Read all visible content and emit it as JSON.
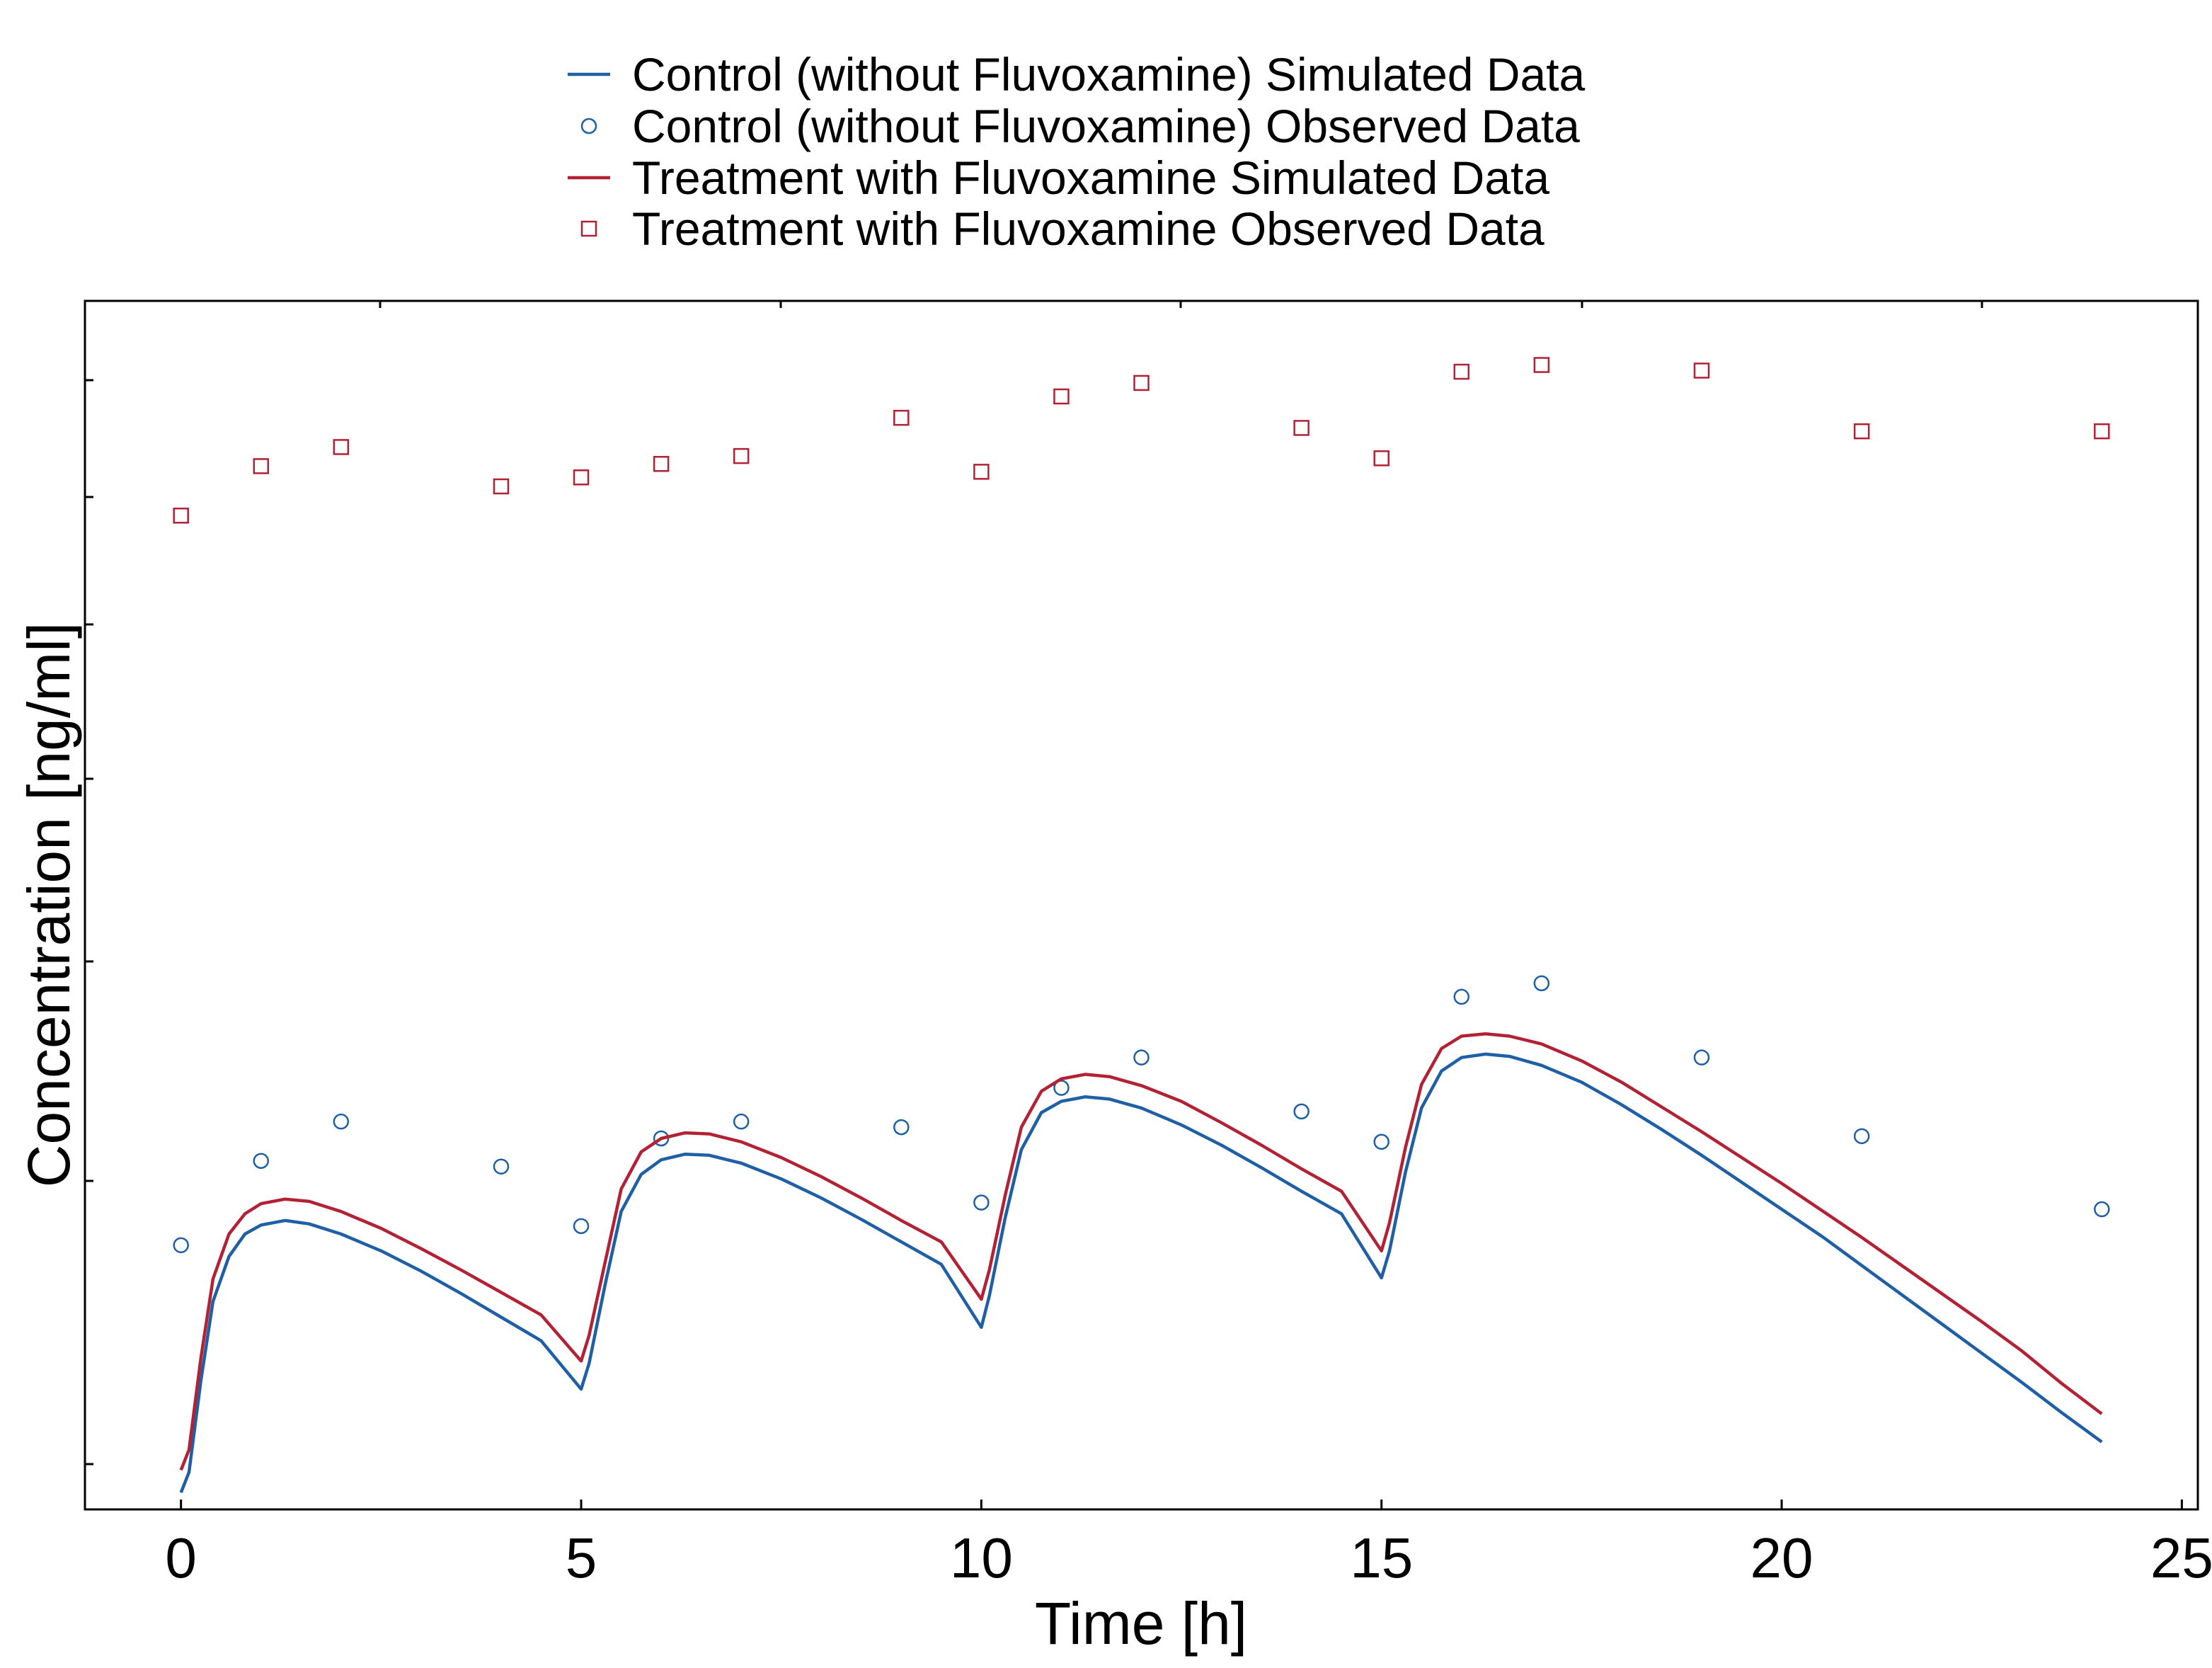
{
  "chart_data": {
    "type": "line",
    "title": "",
    "xlabel": "Time [h]",
    "ylabel": "Concentration [ng/ml]",
    "xlim": [
      -1.2,
      25.2
    ],
    "ylim": [
      -0.15,
      10.6
    ],
    "x_ticks": [
      0,
      5,
      10,
      15,
      20,
      25
    ],
    "x_tick_labels": [
      "0",
      "5",
      "10",
      "15",
      "20",
      "25"
    ],
    "y_tick_labels_shown": false,
    "grid": false,
    "legend_position": "top-center",
    "colors": {
      "control": "#1f5fa6",
      "treatment": "#b22234"
    },
    "series": [
      {
        "name": "Control (without Fluvoxamine) Simulated Data",
        "kind": "line",
        "color": "#1f5fa6",
        "points": [
          [
            0.0,
            0.0
          ],
          [
            0.1,
            0.18
          ],
          [
            0.25,
            1.0
          ],
          [
            0.4,
            1.7
          ],
          [
            0.6,
            2.1
          ],
          [
            0.8,
            2.3
          ],
          [
            1.0,
            2.38
          ],
          [
            1.3,
            2.42
          ],
          [
            1.6,
            2.39
          ],
          [
            2.0,
            2.3
          ],
          [
            2.5,
            2.15
          ],
          [
            3.0,
            1.97
          ],
          [
            3.5,
            1.77
          ],
          [
            4.0,
            1.56
          ],
          [
            4.5,
            1.35
          ],
          [
            5.0,
            0.92
          ],
          [
            5.1,
            1.15
          ],
          [
            5.3,
            1.85
          ],
          [
            5.5,
            2.5
          ],
          [
            5.75,
            2.83
          ],
          [
            6.0,
            2.96
          ],
          [
            6.3,
            3.01
          ],
          [
            6.6,
            3.0
          ],
          [
            7.0,
            2.93
          ],
          [
            7.5,
            2.79
          ],
          [
            8.0,
            2.62
          ],
          [
            8.5,
            2.43
          ],
          [
            9.0,
            2.23
          ],
          [
            9.5,
            2.03
          ],
          [
            10.0,
            1.47
          ],
          [
            10.1,
            1.75
          ],
          [
            10.3,
            2.45
          ],
          [
            10.5,
            3.05
          ],
          [
            10.75,
            3.38
          ],
          [
            11.0,
            3.48
          ],
          [
            11.3,
            3.52
          ],
          [
            11.6,
            3.5
          ],
          [
            12.0,
            3.42
          ],
          [
            12.5,
            3.27
          ],
          [
            13.0,
            3.09
          ],
          [
            13.5,
            2.89
          ],
          [
            14.0,
            2.68
          ],
          [
            14.5,
            2.48
          ],
          [
            15.0,
            1.91
          ],
          [
            15.1,
            2.15
          ],
          [
            15.3,
            2.85
          ],
          [
            15.5,
            3.42
          ],
          [
            15.75,
            3.75
          ],
          [
            16.0,
            3.87
          ],
          [
            16.3,
            3.9
          ],
          [
            16.6,
            3.88
          ],
          [
            17.0,
            3.8
          ],
          [
            17.5,
            3.65
          ],
          [
            18.0,
            3.45
          ],
          [
            18.5,
            3.23
          ],
          [
            19.0,
            3.0
          ],
          [
            19.5,
            2.76
          ],
          [
            20.0,
            2.52
          ],
          [
            20.5,
            2.28
          ],
          [
            21.0,
            2.02
          ],
          [
            21.5,
            1.76
          ],
          [
            22.0,
            1.5
          ],
          [
            22.5,
            1.24
          ],
          [
            23.0,
            0.98
          ],
          [
            23.5,
            0.71
          ],
          [
            24.0,
            0.45
          ]
        ]
      },
      {
        "name": "Control (without Fluvoxamine) Observed Data",
        "kind": "scatter",
        "marker": "circle",
        "color": "#1f5fa6",
        "points": [
          [
            0,
            2.2
          ],
          [
            1,
            2.95
          ],
          [
            2,
            3.3
          ],
          [
            4,
            2.9
          ],
          [
            5,
            2.37
          ],
          [
            6,
            3.15
          ],
          [
            7,
            3.3
          ],
          [
            9,
            3.25
          ],
          [
            10,
            2.58
          ],
          [
            11,
            3.6
          ],
          [
            12,
            3.87
          ],
          [
            14,
            3.39
          ],
          [
            15,
            3.12
          ],
          [
            16,
            4.41
          ],
          [
            17,
            4.53
          ],
          [
            19,
            3.87
          ],
          [
            21,
            3.17
          ],
          [
            24,
            2.52
          ]
        ]
      },
      {
        "name": "Treatment with Fluvoxamine Simulated Data",
        "kind": "line",
        "color": "#b22234",
        "points": [
          [
            0.0,
            0.2
          ],
          [
            0.1,
            0.38
          ],
          [
            0.25,
            1.2
          ],
          [
            0.4,
            1.9
          ],
          [
            0.6,
            2.3
          ],
          [
            0.8,
            2.48
          ],
          [
            1.0,
            2.57
          ],
          [
            1.3,
            2.61
          ],
          [
            1.6,
            2.59
          ],
          [
            2.0,
            2.5
          ],
          [
            2.5,
            2.35
          ],
          [
            3.0,
            2.17
          ],
          [
            3.5,
            1.98
          ],
          [
            4.0,
            1.78
          ],
          [
            4.5,
            1.58
          ],
          [
            5.0,
            1.17
          ],
          [
            5.1,
            1.4
          ],
          [
            5.3,
            2.05
          ],
          [
            5.5,
            2.7
          ],
          [
            5.75,
            3.03
          ],
          [
            6.0,
            3.15
          ],
          [
            6.3,
            3.2
          ],
          [
            6.6,
            3.19
          ],
          [
            7.0,
            3.12
          ],
          [
            7.5,
            2.98
          ],
          [
            8.0,
            2.81
          ],
          [
            8.5,
            2.62
          ],
          [
            9.0,
            2.42
          ],
          [
            9.5,
            2.23
          ],
          [
            10.0,
            1.72
          ],
          [
            10.1,
            1.98
          ],
          [
            10.3,
            2.65
          ],
          [
            10.5,
            3.25
          ],
          [
            10.75,
            3.57
          ],
          [
            11.0,
            3.68
          ],
          [
            11.3,
            3.72
          ],
          [
            11.6,
            3.7
          ],
          [
            12.0,
            3.62
          ],
          [
            12.5,
            3.48
          ],
          [
            13.0,
            3.29
          ],
          [
            13.5,
            3.09
          ],
          [
            14.0,
            2.88
          ],
          [
            14.5,
            2.68
          ],
          [
            15.0,
            2.15
          ],
          [
            15.1,
            2.4
          ],
          [
            15.3,
            3.07
          ],
          [
            15.5,
            3.63
          ],
          [
            15.75,
            3.95
          ],
          [
            16.0,
            4.06
          ],
          [
            16.3,
            4.08
          ],
          [
            16.6,
            4.06
          ],
          [
            17.0,
            3.99
          ],
          [
            17.5,
            3.84
          ],
          [
            18.0,
            3.65
          ],
          [
            18.5,
            3.43
          ],
          [
            19.0,
            3.21
          ],
          [
            19.5,
            2.98
          ],
          [
            20.0,
            2.75
          ],
          [
            20.5,
            2.51
          ],
          [
            21.0,
            2.27
          ],
          [
            21.5,
            2.02
          ],
          [
            22.0,
            1.77
          ],
          [
            22.5,
            1.52
          ],
          [
            23.0,
            1.26
          ],
          [
            23.5,
            0.97
          ],
          [
            24.0,
            0.7
          ]
        ]
      },
      {
        "name": "Treatment with Fluvoxamine Observed Data",
        "kind": "scatter",
        "marker": "square",
        "color": "#b22234",
        "points": [
          [
            0,
            8.69
          ],
          [
            1,
            9.13
          ],
          [
            2,
            9.3
          ],
          [
            4,
            8.95
          ],
          [
            5,
            9.03
          ],
          [
            6,
            9.15
          ],
          [
            7,
            9.22
          ],
          [
            9,
            9.56
          ],
          [
            10,
            9.08
          ],
          [
            11,
            9.75
          ],
          [
            12,
            9.87
          ],
          [
            14,
            9.47
          ],
          [
            15,
            9.2
          ],
          [
            16,
            9.97
          ],
          [
            17,
            10.03
          ],
          [
            19,
            9.98
          ],
          [
            21,
            9.44
          ],
          [
            24,
            9.44
          ]
        ]
      }
    ]
  }
}
